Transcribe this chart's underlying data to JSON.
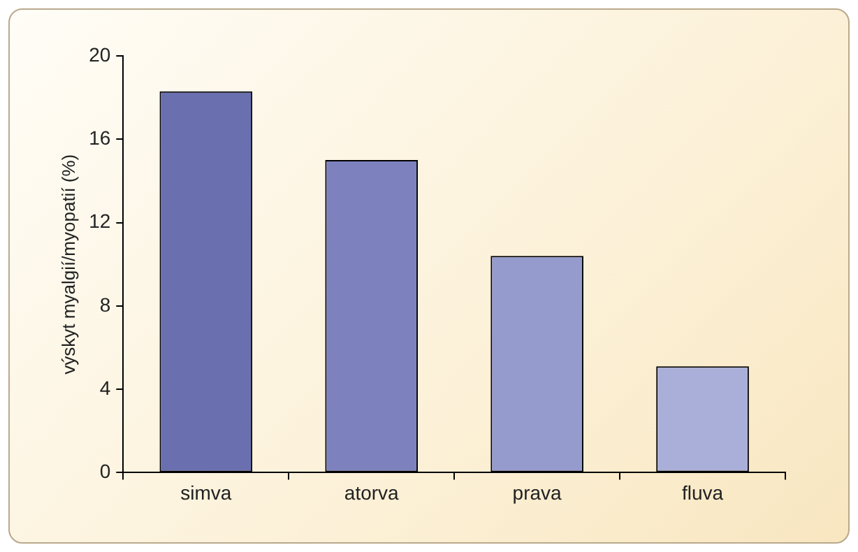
{
  "chart_data": {
    "type": "bar",
    "ylabel": "výskyt myalgií/myopatií (%)",
    "categories": [
      "simva",
      "atorva",
      "prava",
      "fluva"
    ],
    "values": [
      18.3,
      15,
      10.4,
      5.1
    ],
    "colors": [
      "#6a6fb0",
      "#7d82bf",
      "#969bcd",
      "#a9afd8"
    ],
    "ylim": [
      0,
      20
    ],
    "yticks": [
      0,
      4,
      8,
      12,
      16,
      20
    ],
    "grid": false,
    "legend": false
  }
}
